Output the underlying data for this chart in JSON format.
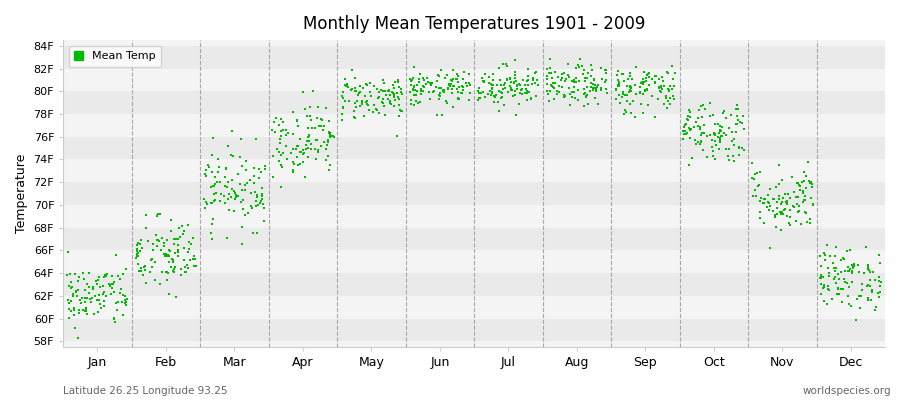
{
  "title": "Monthly Mean Temperatures 1901 - 2009",
  "ylabel": "Temperature",
  "xlabel_months": [
    "Jan",
    "Feb",
    "Mar",
    "Apr",
    "May",
    "Jun",
    "Jul",
    "Aug",
    "Sep",
    "Oct",
    "Nov",
    "Dec"
  ],
  "ytick_labels": [
    "58F",
    "60F",
    "62F",
    "64F",
    "66F",
    "68F",
    "70F",
    "72F",
    "74F",
    "76F",
    "78F",
    "80F",
    "82F",
    "84F"
  ],
  "ytick_values": [
    58,
    60,
    62,
    64,
    66,
    68,
    70,
    72,
    74,
    76,
    78,
    80,
    82,
    84
  ],
  "ylim": [
    57.5,
    84.5
  ],
  "dot_color": "#00bb00",
  "dot_size": 4,
  "background_color": "#ffffff",
  "band_color_light": "#f4f4f4",
  "band_color_dark": "#eaeaea",
  "grid_color": "#888888",
  "footer_left": "Latitude 26.25 Longitude 93.25",
  "footer_right": "worldspecies.org",
  "legend_label": "Mean Temp",
  "n_years": 109,
  "monthly_means": [
    62.0,
    65.5,
    71.5,
    75.8,
    79.5,
    80.2,
    80.5,
    80.5,
    80.2,
    76.5,
    70.5,
    63.5
  ],
  "monthly_stds": [
    1.4,
    1.7,
    1.8,
    1.6,
    1.0,
    0.8,
    0.9,
    0.9,
    1.1,
    1.4,
    1.5,
    1.4
  ]
}
